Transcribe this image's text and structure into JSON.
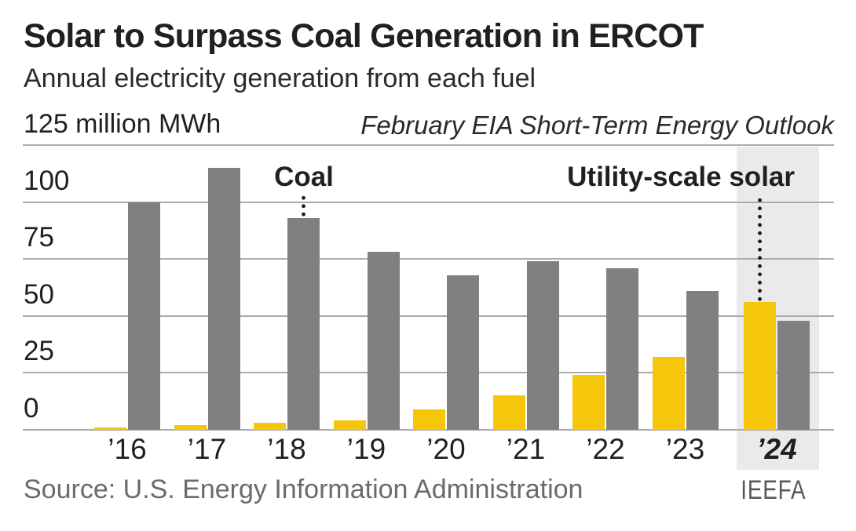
{
  "header": {
    "title": "Solar to Surpass Coal Generation in ERCOT",
    "subtitle": "Annual electricity generation from each fuel",
    "unit_label": "125 million MWh",
    "note": "February EIA Short-Term Energy Outlook"
  },
  "chart_data": {
    "type": "bar",
    "title": "Solar to Surpass Coal Generation in ERCOT",
    "subtitle": "Annual electricity generation from each fuel",
    "unit": "million MWh",
    "categories": [
      "’16",
      "’17",
      "’18",
      "’19",
      "’20",
      "’21",
      "’22",
      "’23",
      "’24"
    ],
    "series": [
      {
        "name": "Utility-scale solar",
        "color": "#F5C60A",
        "values": [
          1,
          2,
          3,
          4,
          9,
          15,
          24,
          32,
          56
        ]
      },
      {
        "name": "Coal",
        "color": "#808083",
        "values": [
          100,
          115,
          93,
          78,
          68,
          74,
          71,
          61,
          48
        ]
      }
    ],
    "ylim": [
      0,
      125
    ],
    "yticks": [
      0,
      25,
      50,
      75,
      100,
      125
    ],
    "grid": "horizontal",
    "legend_position": "inline-annotations",
    "highlight_category": "’24",
    "annotations": [
      {
        "text": "Coal",
        "points_to_category": "’18",
        "points_to_series": "Coal"
      },
      {
        "text": "Utility-scale solar",
        "points_to_category": "’24",
        "points_to_series": "Utility-scale solar"
      }
    ]
  },
  "footer": {
    "source": "Source: U.S. Energy Information Administration",
    "logo": "IEEFA"
  },
  "colors": {
    "solar": "#F5C60A",
    "coal": "#808083",
    "highlight_band": "#EAEAEA",
    "gridline": "#ABABAD",
    "text_dark": "#231F20",
    "text_gray": "#6A6A6D"
  }
}
